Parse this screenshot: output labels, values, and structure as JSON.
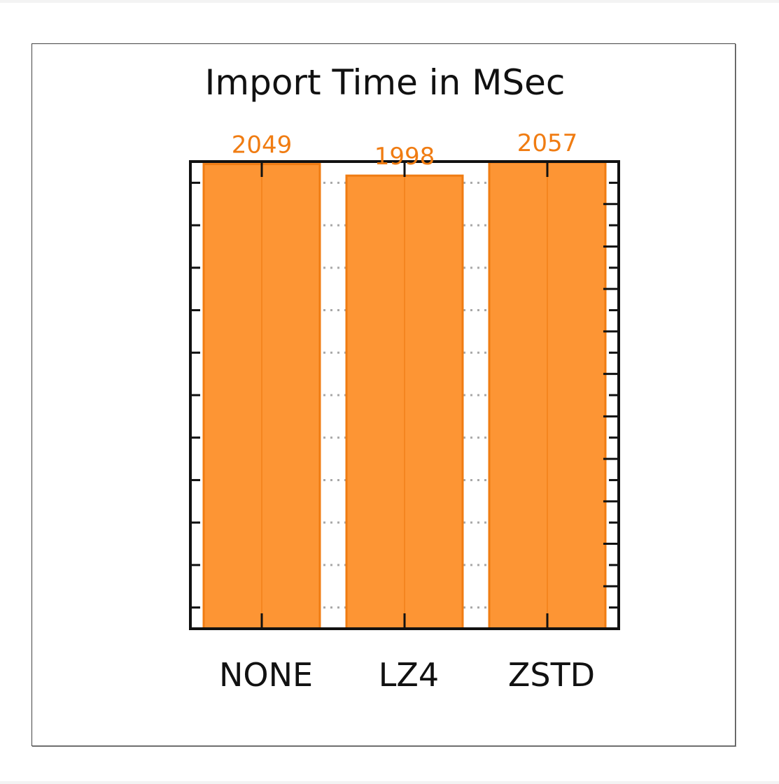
{
  "chart_data": {
    "type": "bar",
    "title": "Import Time in MSec",
    "xlabel": "",
    "ylabel": "",
    "categories": [
      "NONE",
      "LZ4",
      "ZSTD"
    ],
    "values": [
      2049,
      1998,
      2057
    ],
    "value_labels": [
      "2049",
      "1998",
      "2057"
    ],
    "ylim": [
      0,
      2060
    ],
    "grid": true,
    "legend": "none",
    "show_y_tick_labels": false
  },
  "colors": {
    "bar_fill": "#fd9534",
    "bar_edge": "#f07c12",
    "value_label": "#f07c12",
    "axis": "#111111",
    "grid": "#a8a8a8"
  }
}
